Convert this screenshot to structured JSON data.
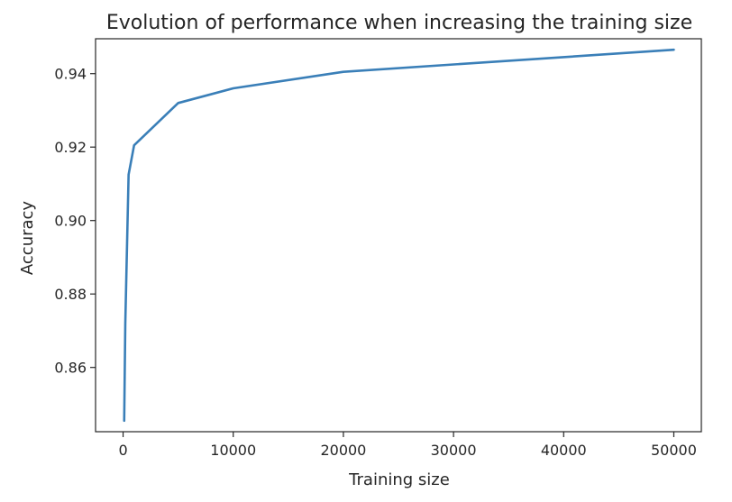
{
  "chart_data": {
    "type": "line",
    "title": "Evolution of performance when increasing the training size",
    "xlabel": "Training size",
    "ylabel": "Accuracy",
    "xlim": [
      -2500,
      52500
    ],
    "ylim": [
      0.8425,
      0.9495
    ],
    "xticks": [
      0,
      10000,
      20000,
      30000,
      40000,
      50000
    ],
    "xtick_labels": [
      "0",
      "10000",
      "20000",
      "30000",
      "40000",
      "50000"
    ],
    "yticks": [
      0.86,
      0.88,
      0.9,
      0.92,
      0.94
    ],
    "ytick_labels": [
      "0.86",
      "0.88",
      "0.90",
      "0.92",
      "0.94"
    ],
    "grid": false,
    "series": [
      {
        "color": "#3a7fb8",
        "x": [
          100,
          200,
          500,
          1000,
          5000,
          10000,
          20000,
          50000
        ],
        "y": [
          0.8455,
          0.872,
          0.9125,
          0.9205,
          0.932,
          0.936,
          0.9405,
          0.9465
        ]
      }
    ]
  }
}
